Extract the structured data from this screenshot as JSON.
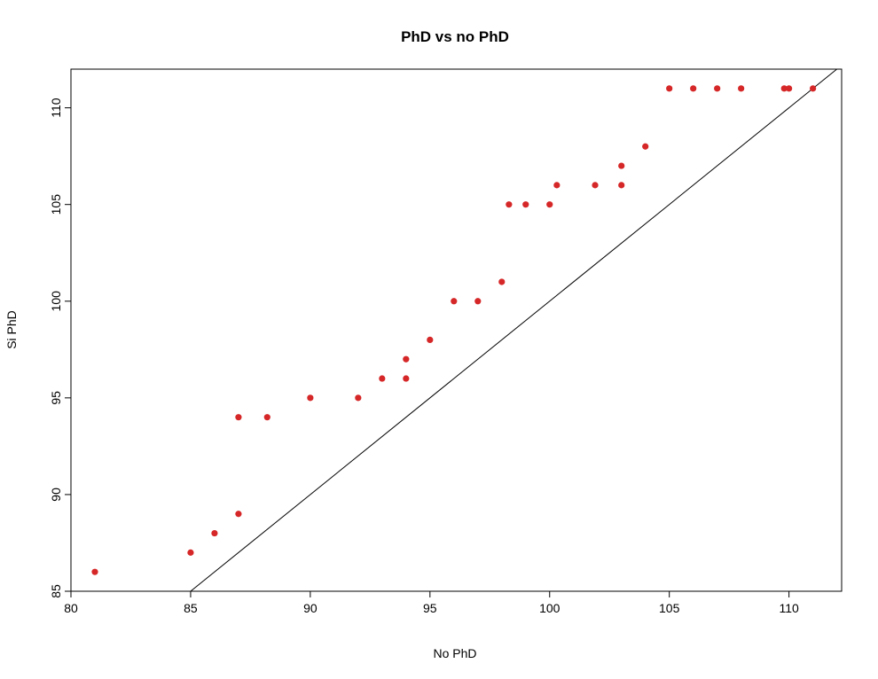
{
  "chart_data": {
    "type": "scatter",
    "title": "PhD vs no PhD",
    "xlabel": "No PhD",
    "ylabel": "Si PhD",
    "xlim": [
      80,
      112.2
    ],
    "ylim": [
      85,
      112
    ],
    "xticks": [
      80,
      85,
      90,
      95,
      100,
      105,
      110
    ],
    "yticks": [
      85,
      90,
      95,
      100,
      105,
      110
    ],
    "grid": false,
    "legend": "none",
    "point_color": "#d62728",
    "reference_line": {
      "label": "y = x",
      "color": "#000000"
    },
    "points": [
      {
        "x": 81,
        "y": 86
      },
      {
        "x": 85,
        "y": 87
      },
      {
        "x": 86,
        "y": 88
      },
      {
        "x": 87,
        "y": 89
      },
      {
        "x": 87,
        "y": 94
      },
      {
        "x": 88.2,
        "y": 94
      },
      {
        "x": 90,
        "y": 95
      },
      {
        "x": 92,
        "y": 95
      },
      {
        "x": 93,
        "y": 96
      },
      {
        "x": 94,
        "y": 96
      },
      {
        "x": 94,
        "y": 97
      },
      {
        "x": 95,
        "y": 98
      },
      {
        "x": 96,
        "y": 100
      },
      {
        "x": 97,
        "y": 100
      },
      {
        "x": 98,
        "y": 101
      },
      {
        "x": 98.3,
        "y": 105
      },
      {
        "x": 99,
        "y": 105
      },
      {
        "x": 100,
        "y": 105
      },
      {
        "x": 100.3,
        "y": 106
      },
      {
        "x": 101.9,
        "y": 106
      },
      {
        "x": 103,
        "y": 106
      },
      {
        "x": 103,
        "y": 107
      },
      {
        "x": 104,
        "y": 108
      },
      {
        "x": 105,
        "y": 111
      },
      {
        "x": 106,
        "y": 111
      },
      {
        "x": 107,
        "y": 111
      },
      {
        "x": 108,
        "y": 111
      },
      {
        "x": 109.8,
        "y": 111
      },
      {
        "x": 110,
        "y": 111
      },
      {
        "x": 111,
        "y": 111
      }
    ]
  }
}
